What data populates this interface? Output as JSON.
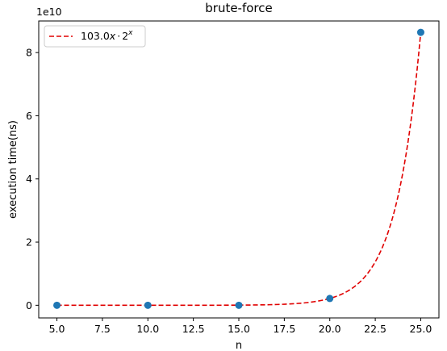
{
  "chart_data": {
    "type": "scatter",
    "title": "brute-force",
    "xlabel": "n",
    "ylabel": "execution time(ns)",
    "y_scale_label": "1e10",
    "xlim": [
      4.0,
      26.0
    ],
    "ylim": [
      -0.4,
      9.0
    ],
    "y_unit": 10000000000.0,
    "x_ticks": [
      5.0,
      7.5,
      10.0,
      12.5,
      15.0,
      17.5,
      20.0,
      22.5,
      25.0
    ],
    "x_tick_labels": [
      "5.0",
      "7.5",
      "10.0",
      "12.5",
      "15.0",
      "17.5",
      "20.0",
      "22.5",
      "25.0"
    ],
    "y_ticks": [
      0,
      2,
      4,
      6,
      8
    ],
    "y_tick_labels": [
      "0",
      "2",
      "4",
      "6",
      "8"
    ],
    "grid": false,
    "legend_position": "top-left",
    "points": {
      "color": "#1f77b4",
      "x": [
        5,
        10,
        15,
        20,
        25
      ],
      "y": [
        1.6e-08,
        1.05e-05,
        0.00051,
        0.216,
        8.64
      ]
    },
    "fit": {
      "color": "#e00000",
      "style": "dashed",
      "coefficient": 103.0,
      "legend_main": "103.0",
      "legend_x": "x",
      "legend_dot": "·",
      "legend_base": "2",
      "legend_exp": "x"
    }
  }
}
